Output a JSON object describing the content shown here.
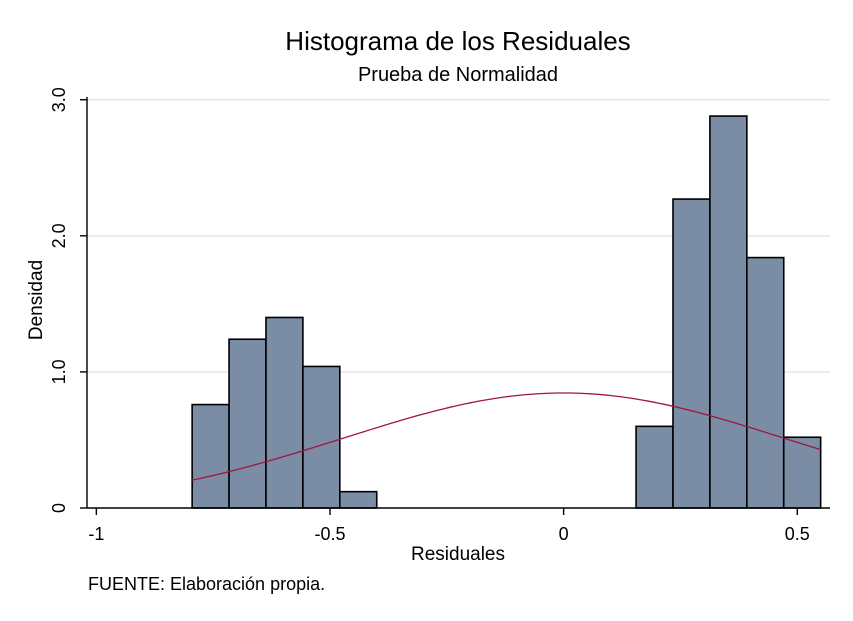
{
  "chart_data": {
    "type": "bar",
    "title": "Histograma de los Residuales",
    "subtitle": "Prueba de Normalidad",
    "xlabel": "Residuales",
    "ylabel": "Densidad",
    "xlim": [
      -1.02,
      0.57
    ],
    "ylim": [
      0,
      3.02
    ],
    "x_ticks": [
      -1,
      -0.5,
      0,
      0.5
    ],
    "x_tick_labels": [
      "-1",
      "-0.5",
      "0",
      "0.5"
    ],
    "y_ticks": [
      0,
      1,
      2,
      3
    ],
    "y_tick_labels": [
      "0",
      "1.0",
      "2.0",
      "3.0"
    ],
    "grid": true,
    "bar_color": "#7a8da5",
    "curve_color": "#a0163f",
    "bins": [
      {
        "x0": -0.795,
        "x1": -0.716,
        "density": 0.76
      },
      {
        "x0": -0.716,
        "x1": -0.637,
        "density": 1.24
      },
      {
        "x0": -0.637,
        "x1": -0.558,
        "density": 1.4
      },
      {
        "x0": -0.558,
        "x1": -0.479,
        "density": 1.04
      },
      {
        "x0": -0.479,
        "x1": -0.4,
        "density": 0.12
      },
      {
        "x0": 0.155,
        "x1": 0.234,
        "density": 0.6
      },
      {
        "x0": 0.234,
        "x1": 0.313,
        "density": 2.27
      },
      {
        "x0": 0.313,
        "x1": 0.392,
        "density": 2.88
      },
      {
        "x0": 0.392,
        "x1": 0.471,
        "density": 1.84
      },
      {
        "x0": 0.471,
        "x1": 0.55,
        "density": 0.52
      }
    ],
    "normal_curve": {
      "mean": 0.0,
      "sd": 0.472,
      "x_range": [
        -0.795,
        0.55
      ]
    }
  },
  "footer": {
    "source": "FUENTE: Elaboración propia."
  }
}
